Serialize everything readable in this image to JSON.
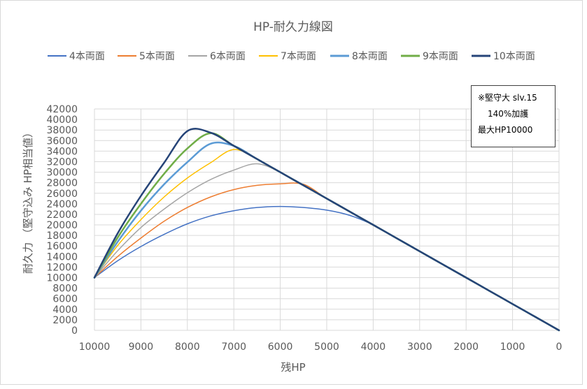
{
  "chart_data": {
    "type": "line",
    "title": "HP-耐久力線図",
    "xlabel": "残HP",
    "ylabel": "耐久力 （堅守込み HP相当値）",
    "xlim": [
      10000,
      0
    ],
    "ylim": [
      0,
      42000
    ],
    "x_ticks": [
      10000,
      9000,
      8000,
      7000,
      6000,
      5000,
      4000,
      3000,
      2000,
      1000,
      0
    ],
    "y_ticks": [
      0,
      2000,
      4000,
      6000,
      8000,
      10000,
      12000,
      14000,
      16000,
      18000,
      20000,
      22000,
      24000,
      26000,
      28000,
      30000,
      32000,
      34000,
      36000,
      38000,
      40000,
      42000
    ],
    "grid": true,
    "legend_position": "top",
    "annotation": [
      "※堅守大 slv.15",
      "140%加護",
      "最大HP10000"
    ],
    "x": [
      10000,
      9500,
      9000,
      8500,
      8000,
      7500,
      7000,
      6500,
      6000,
      5500,
      5000,
      4500,
      4000,
      3500,
      3000,
      2500,
      2000,
      1500,
      1000,
      500,
      0
    ],
    "series": [
      {
        "name": "4本両面",
        "color": "#4472c4",
        "width": 1.5,
        "values": [
          10000,
          13200,
          15900,
          18200,
          20200,
          21700,
          22700,
          23300,
          23500,
          23300,
          22800,
          21800,
          20000,
          17500,
          15000,
          12500,
          10000,
          7500,
          5000,
          2500,
          0
        ]
      },
      {
        "name": "5本両面",
        "color": "#ed7d31",
        "width": 1.5,
        "values": [
          10000,
          14000,
          17500,
          20700,
          23300,
          25300,
          26700,
          27500,
          27800,
          27700,
          25000,
          22500,
          20000,
          17500,
          15000,
          12500,
          10000,
          7500,
          5000,
          2500,
          0
        ]
      },
      {
        "name": "6本両面",
        "color": "#a5a5a5",
        "width": 1.5,
        "values": [
          10000,
          15100,
          19500,
          23000,
          26100,
          28600,
          30400,
          31600,
          30000,
          27500,
          25000,
          22500,
          20000,
          17500,
          15000,
          12500,
          10000,
          7500,
          5000,
          2500,
          0
        ]
      },
      {
        "name": "7本両面",
        "color": "#ffc000",
        "width": 1.5,
        "values": [
          10000,
          16100,
          21000,
          25300,
          28900,
          31800,
          34300,
          32500,
          30000,
          27500,
          25000,
          22500,
          20000,
          17500,
          15000,
          12500,
          10000,
          7500,
          5000,
          2500,
          0
        ]
      },
      {
        "name": "8本両面",
        "color": "#5b9bd5",
        "width": 2.5,
        "values": [
          10000,
          16800,
          22700,
          27700,
          31900,
          35400,
          35000,
          32500,
          30000,
          27500,
          25000,
          22500,
          20000,
          17500,
          15000,
          12500,
          10000,
          7500,
          5000,
          2500,
          0
        ]
      },
      {
        "name": "9本両面",
        "color": "#70ad47",
        "width": 2.5,
        "values": [
          10000,
          17600,
          24000,
          29700,
          34500,
          37400,
          35000,
          32500,
          30000,
          27500,
          25000,
          22500,
          20000,
          17500,
          15000,
          12500,
          10000,
          7500,
          5000,
          2500,
          0
        ]
      },
      {
        "name": "10本両面",
        "color": "#264478",
        "width": 2.5,
        "values": [
          10000,
          18400,
          25500,
          31800,
          37800,
          37500,
          35000,
          32500,
          30000,
          27500,
          25000,
          22500,
          20000,
          17500,
          15000,
          12500,
          10000,
          7500,
          5000,
          2500,
          0
        ]
      }
    ]
  }
}
